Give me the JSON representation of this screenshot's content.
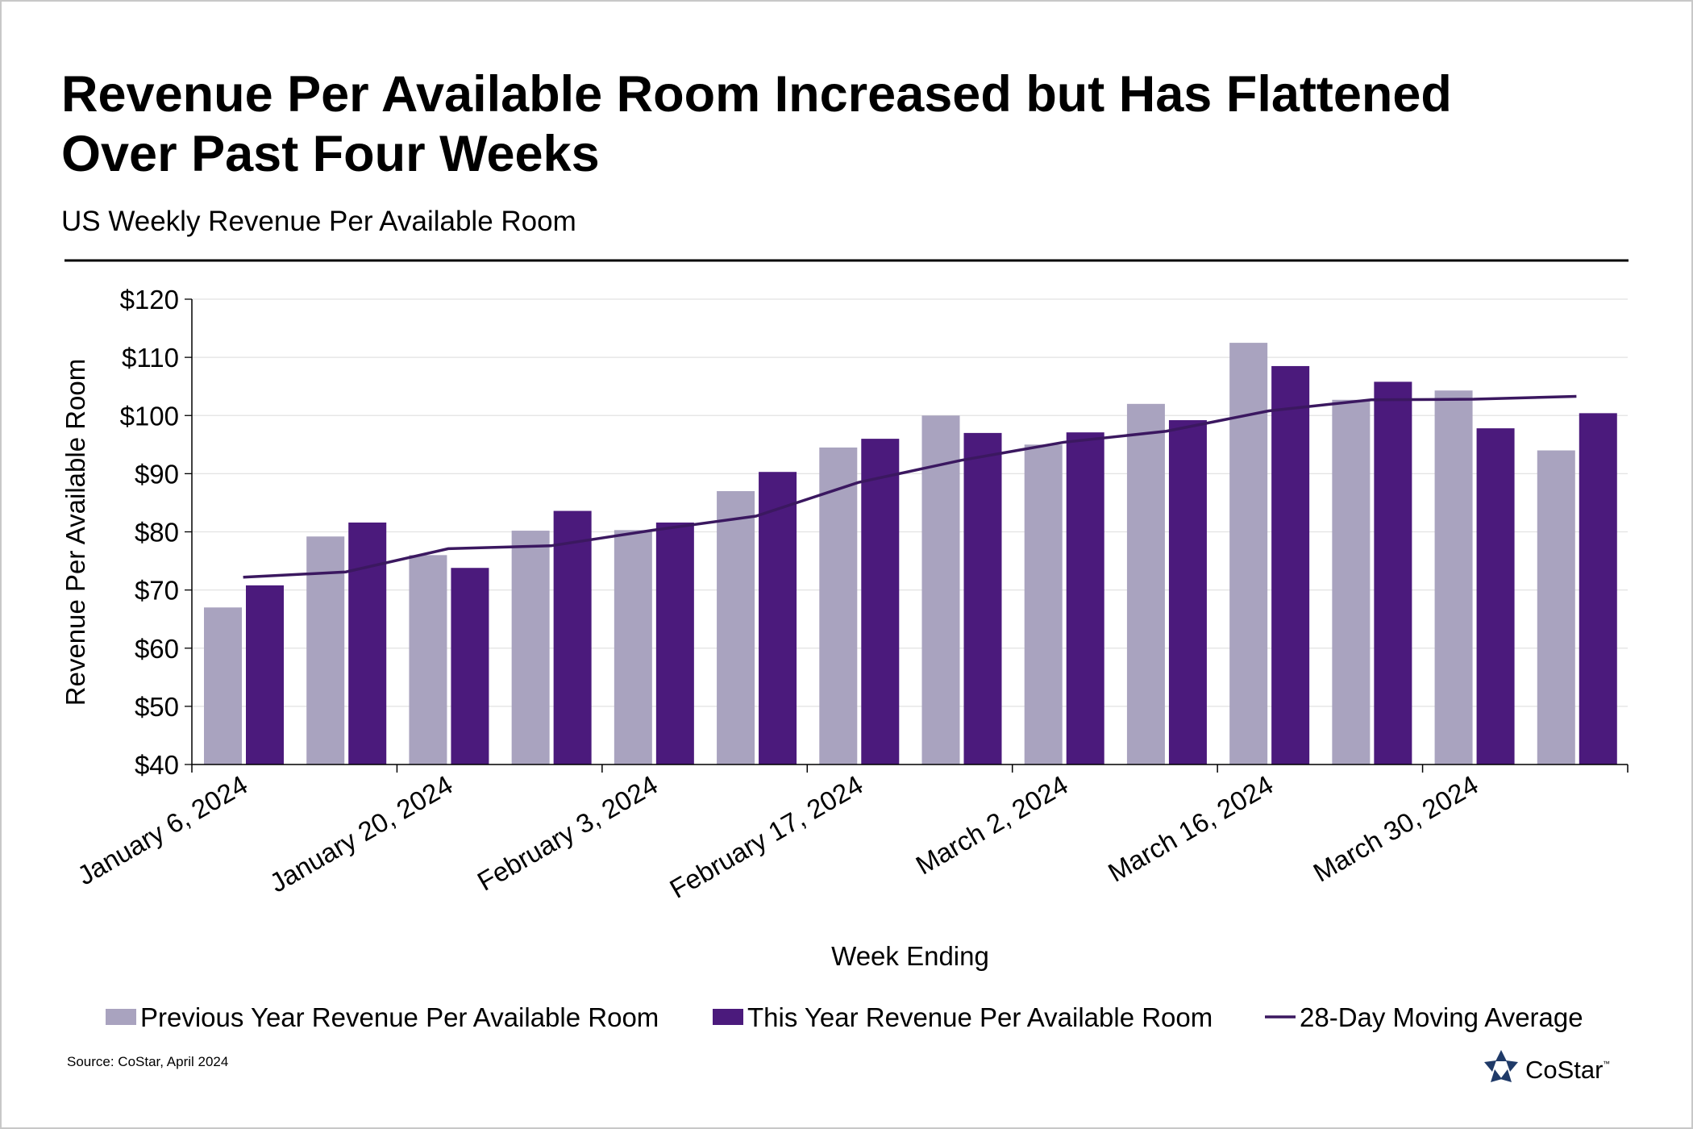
{
  "chart_data": {
    "type": "bar_line",
    "title": [
      "Revenue Per Available Room Increased but Has Flattened",
      "Over Past Four Weeks"
    ],
    "subtitle": "US Weekly Revenue Per Available Room",
    "y_label": "Revenue Per Available Room",
    "x_label": "Week Ending",
    "categories": [
      "January 6, 2024",
      null,
      "January 20, 2024",
      null,
      "February 3, 2024",
      null,
      "February 17, 2024",
      null,
      "March 2, 2024",
      null,
      "March 16, 2024",
      null,
      "March 30, 2024",
      null
    ],
    "series": [
      {
        "name": "Previous Year Revenue Per Available Room",
        "kind": "bar",
        "color": "#a9a3bf",
        "values": [
          67,
          79.2,
          76,
          80.2,
          80.3,
          87,
          94.5,
          100,
          95,
          102,
          112.5,
          102.7,
          104.3,
          94
        ]
      },
      {
        "name": "This Year Revenue Per Available Room",
        "kind": "bar",
        "color": "#4b1a7c",
        "values": [
          70.8,
          81.6,
          73.8,
          83.6,
          81.6,
          90.3,
          96,
          97,
          97.1,
          99.2,
          108.5,
          105.8,
          97.8,
          100.4
        ]
      },
      {
        "name": "28-Day Moving Average",
        "kind": "line",
        "color": "#3b1860",
        "values": [
          72.2,
          73.1,
          77.1,
          77.6,
          80.3,
          82.7,
          88.5,
          92.3,
          95.4,
          97.3,
          100.8,
          102.7,
          102.8,
          103.3
        ]
      }
    ],
    "ylim": [
      40,
      120
    ],
    "yticks": [
      {
        "value": 40,
        "label": "$40"
      },
      {
        "value": 50,
        "label": "$50"
      },
      {
        "value": 60,
        "label": "$60"
      },
      {
        "value": 70,
        "label": "$70"
      },
      {
        "value": 80,
        "label": "$80"
      },
      {
        "value": 90,
        "label": "$90"
      },
      {
        "value": 100,
        "label": "$100"
      },
      {
        "value": 110,
        "label": "$110"
      },
      {
        "value": 120,
        "label": "$120"
      }
    ],
    "grid": true,
    "legend": "bottom",
    "source": "Source: CoStar, April 2024",
    "logo": "CoStar",
    "logo_mark": "™"
  }
}
